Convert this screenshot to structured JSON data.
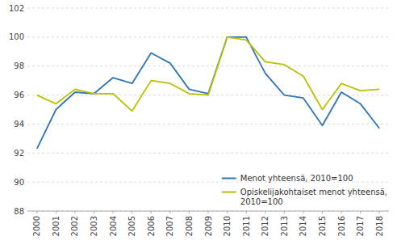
{
  "chart_data": {
    "type": "line",
    "x": [
      2000,
      2001,
      2002,
      2003,
      2004,
      2005,
      2006,
      2007,
      2008,
      2009,
      2010,
      2011,
      2012,
      2013,
      2014,
      2015,
      2016,
      2017,
      2018
    ],
    "series": [
      {
        "name": "Menot yhteensä, 2010=100",
        "color": "#2E75B6",
        "values": [
          92.3,
          95.0,
          96.2,
          96.1,
          97.2,
          96.8,
          98.9,
          98.2,
          96.4,
          96.1,
          100.0,
          100.0,
          97.5,
          96.0,
          95.8,
          93.9,
          96.2,
          95.4,
          93.7
        ]
      },
      {
        "name": "Opiskelijakohtaiset menot yhteensä,\n2010=100",
        "color": "#B8C000",
        "values": [
          96.0,
          95.4,
          96.4,
          96.1,
          96.1,
          94.9,
          97.0,
          96.8,
          96.1,
          96.0,
          100.0,
          99.8,
          98.3,
          98.1,
          97.3,
          95.0,
          96.8,
          96.3,
          96.4
        ]
      }
    ],
    "xlim": [
      1999.5,
      2018.5
    ],
    "xticks": [
      2000,
      2001,
      2002,
      2003,
      2004,
      2005,
      2006,
      2007,
      2008,
      2009,
      2010,
      2011,
      2012,
      2013,
      2014,
      2015,
      2016,
      2017,
      2018
    ],
    "ylim": [
      88,
      102
    ],
    "yticks": [
      88,
      90,
      92,
      94,
      96,
      98,
      100,
      102
    ],
    "grid": true,
    "legend": "lower right"
  }
}
